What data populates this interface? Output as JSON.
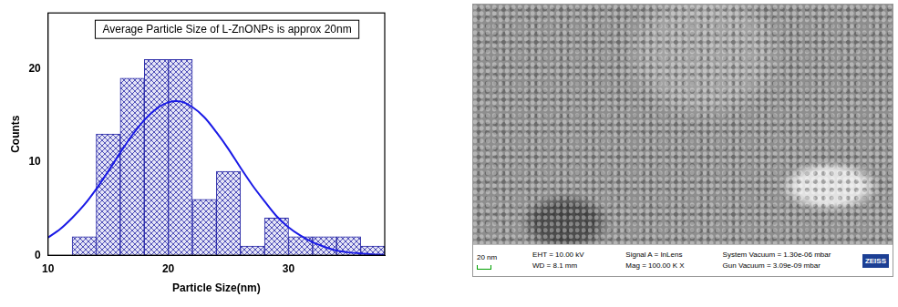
{
  "chart_data": {
    "type": "histogram",
    "annotation": "Average Particle Size of L-ZnONPs is approx 20nm",
    "x_label": "Particle Size(nm)",
    "y_label": "Counts",
    "bins": [
      12,
      14,
      16,
      18,
      20,
      22,
      24,
      26,
      28,
      30,
      32,
      34,
      36,
      38
    ],
    "counts": [
      2,
      13,
      19,
      21,
      21,
      6,
      9,
      1,
      4,
      2,
      2,
      2,
      1
    ],
    "color": "#2a2aa8",
    "curve": {
      "type": "line",
      "color": "#1a1ae6",
      "x": [
        10,
        11,
        12,
        13,
        14,
        15,
        16,
        17,
        18,
        19,
        20,
        21,
        22,
        23,
        24,
        25,
        26,
        27,
        28,
        29,
        30,
        31,
        32,
        33,
        34,
        35,
        36,
        37,
        38
      ],
      "values": [
        1.9,
        2.8,
        4.0,
        5.4,
        7.1,
        9.0,
        11.0,
        12.9,
        14.5,
        15.7,
        16.4,
        16.5,
        15.9,
        14.8,
        13.2,
        11.4,
        9.4,
        7.5,
        5.8,
        4.2,
        3.0,
        2.1,
        1.4,
        0.9,
        0.5,
        0.3,
        0.2,
        0.1,
        0.05
      ]
    },
    "xlim": [
      10,
      38
    ],
    "xticks": [
      10,
      20,
      30
    ],
    "ylim": [
      0,
      26
    ],
    "yticks": [
      0,
      10,
      20
    ],
    "grid": false
  },
  "sem_image": {
    "scale_bar": "20 nm",
    "info": [
      [
        "EHT = 10.00 kV",
        "WD = 8.1 mm"
      ],
      [
        "Signal A = InLens",
        "Mag = 100.00 K X"
      ],
      [
        "System Vacuum = 1.30e-06 mbar",
        "Gun Vacuum = 3.09e-09 mbar"
      ]
    ],
    "logo": "ZEISS"
  }
}
